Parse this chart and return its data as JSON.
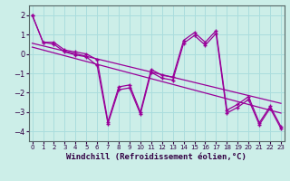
{
  "bg_color": "#cceee8",
  "line_color": "#990099",
  "grid_color": "#aadddd",
  "xlabel": "Windchill (Refroidissement éolien,°C)",
  "xlabel_fontsize": 6.5,
  "ytick_labels": [
    "",
    "-4",
    "-3",
    "-2",
    "-1",
    "0",
    "1",
    "2"
  ],
  "yticks": [
    -4.5,
    -4,
    -3,
    -2,
    -1,
    0,
    1,
    2
  ],
  "xticks": [
    0,
    1,
    2,
    3,
    4,
    5,
    6,
    7,
    8,
    9,
    10,
    11,
    12,
    13,
    14,
    15,
    16,
    17,
    18,
    19,
    20,
    21,
    22,
    23
  ],
  "xlim": [
    -0.3,
    23.3
  ],
  "ylim": [
    -4.5,
    2.5
  ],
  "line1_x": [
    0,
    1,
    2,
    3,
    4,
    5,
    6,
    7,
    8,
    9,
    10,
    11,
    12,
    13,
    14,
    15,
    16,
    17,
    18,
    19,
    20,
    21,
    22,
    23
  ],
  "line1_y": [
    2.0,
    0.6,
    0.6,
    0.2,
    0.1,
    0.0,
    -0.3,
    -3.5,
    -1.7,
    -1.6,
    -3.0,
    -0.8,
    -1.1,
    -1.2,
    0.7,
    1.1,
    0.6,
    1.2,
    -2.9,
    -2.6,
    -2.2,
    -3.55,
    -2.7,
    -3.75
  ],
  "line2_x": [
    0,
    1,
    2,
    3,
    4,
    5,
    6,
    7,
    8,
    9,
    10,
    11,
    12,
    13,
    14,
    15,
    16,
    17,
    18,
    19,
    20,
    21,
    22,
    23
  ],
  "line2_y": [
    2.0,
    0.6,
    0.5,
    0.1,
    -0.05,
    -0.15,
    -0.6,
    -3.6,
    -1.85,
    -1.75,
    -3.1,
    -0.95,
    -1.25,
    -1.35,
    0.55,
    0.95,
    0.45,
    1.05,
    -3.05,
    -2.75,
    -2.35,
    -3.65,
    -2.8,
    -3.85
  ],
  "trend1_x": [
    0,
    23
  ],
  "trend1_y": [
    0.55,
    -2.55
  ],
  "trend2_x": [
    0,
    23
  ],
  "trend2_y": [
    0.35,
    -3.05
  ],
  "marker": "+"
}
